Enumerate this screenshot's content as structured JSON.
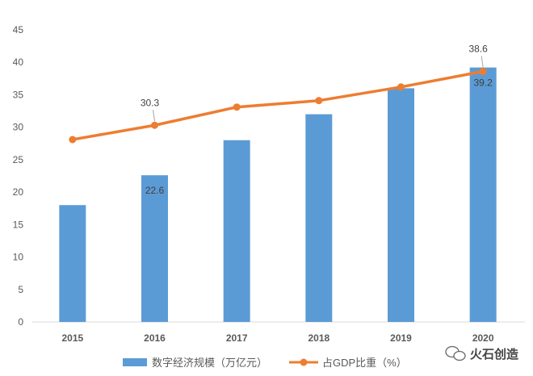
{
  "chart_data": {
    "type": "bar",
    "categories": [
      "2015",
      "2016",
      "2017",
      "2018",
      "2019",
      "2020"
    ],
    "series": [
      {
        "name": "数字经济规模（万亿元）",
        "type": "bar",
        "color": "#5b9bd5",
        "values": [
          18.0,
          22.6,
          28.0,
          32.0,
          36.0,
          39.2
        ]
      },
      {
        "name": "占GDP比重（%）",
        "type": "line",
        "color": "#ed7d31",
        "values": [
          28.1,
          30.3,
          33.1,
          34.1,
          36.2,
          38.6
        ]
      }
    ],
    "data_labels": [
      {
        "series": 0,
        "index": 1,
        "text": "22.6"
      },
      {
        "series": 0,
        "index": 5,
        "text": "39.2"
      },
      {
        "series": 1,
        "index": 1,
        "text": "30.3"
      },
      {
        "series": 1,
        "index": 5,
        "text": "38.6"
      }
    ],
    "ylim": [
      0,
      45
    ],
    "yticks": [
      0,
      5,
      10,
      15,
      20,
      25,
      30,
      35,
      40,
      45
    ],
    "title": "",
    "xlabel": "",
    "ylabel": "",
    "grid": false,
    "legend": "bottom"
  },
  "watermark": {
    "text": "火石创造",
    "icon": "wechat-icon"
  }
}
